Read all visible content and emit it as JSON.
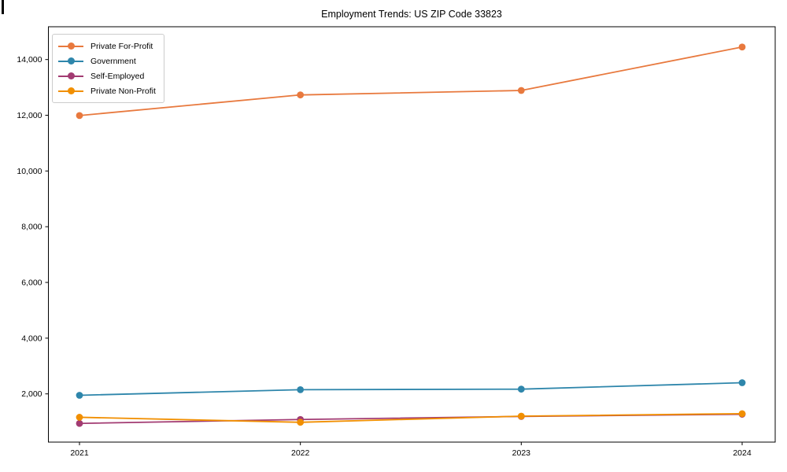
{
  "chart_data": {
    "type": "line",
    "title": "Employment Trends: US ZIP Code 33823",
    "xlabel": "",
    "ylabel": "",
    "grid": false,
    "legend_position": "upper-left",
    "marker": "circle",
    "background_color": "#ffffff",
    "axis_color": "#000000",
    "legend_border_color": "#cccccc",
    "x": [
      2021,
      2022,
      2023,
      2024
    ],
    "x_tick_labels": [
      "2021",
      "2022",
      "2023",
      "2024"
    ],
    "y_tick_values": [
      2000,
      4000,
      6000,
      8000,
      10000,
      12000,
      14000
    ],
    "y_tick_labels": [
      "2,000",
      "4,000",
      "6,000",
      "8,000",
      "10,000",
      "12,000",
      "14,000"
    ],
    "ylim": [
      269,
      15177
    ],
    "series": [
      {
        "name": "Private For-Profit",
        "color": "#E8793E",
        "values": [
          11990,
          12730,
          12890,
          14450
        ]
      },
      {
        "name": "Government",
        "color": "#2E86AB",
        "values": [
          1950,
          2150,
          2170,
          2400
        ]
      },
      {
        "name": "Self-Employed",
        "color": "#A23B72",
        "values": [
          940,
          1080,
          1190,
          1270
        ]
      },
      {
        "name": "Private Non-Profit",
        "color": "#F18F01",
        "values": [
          1160,
          980,
          1200,
          1290
        ]
      }
    ]
  }
}
